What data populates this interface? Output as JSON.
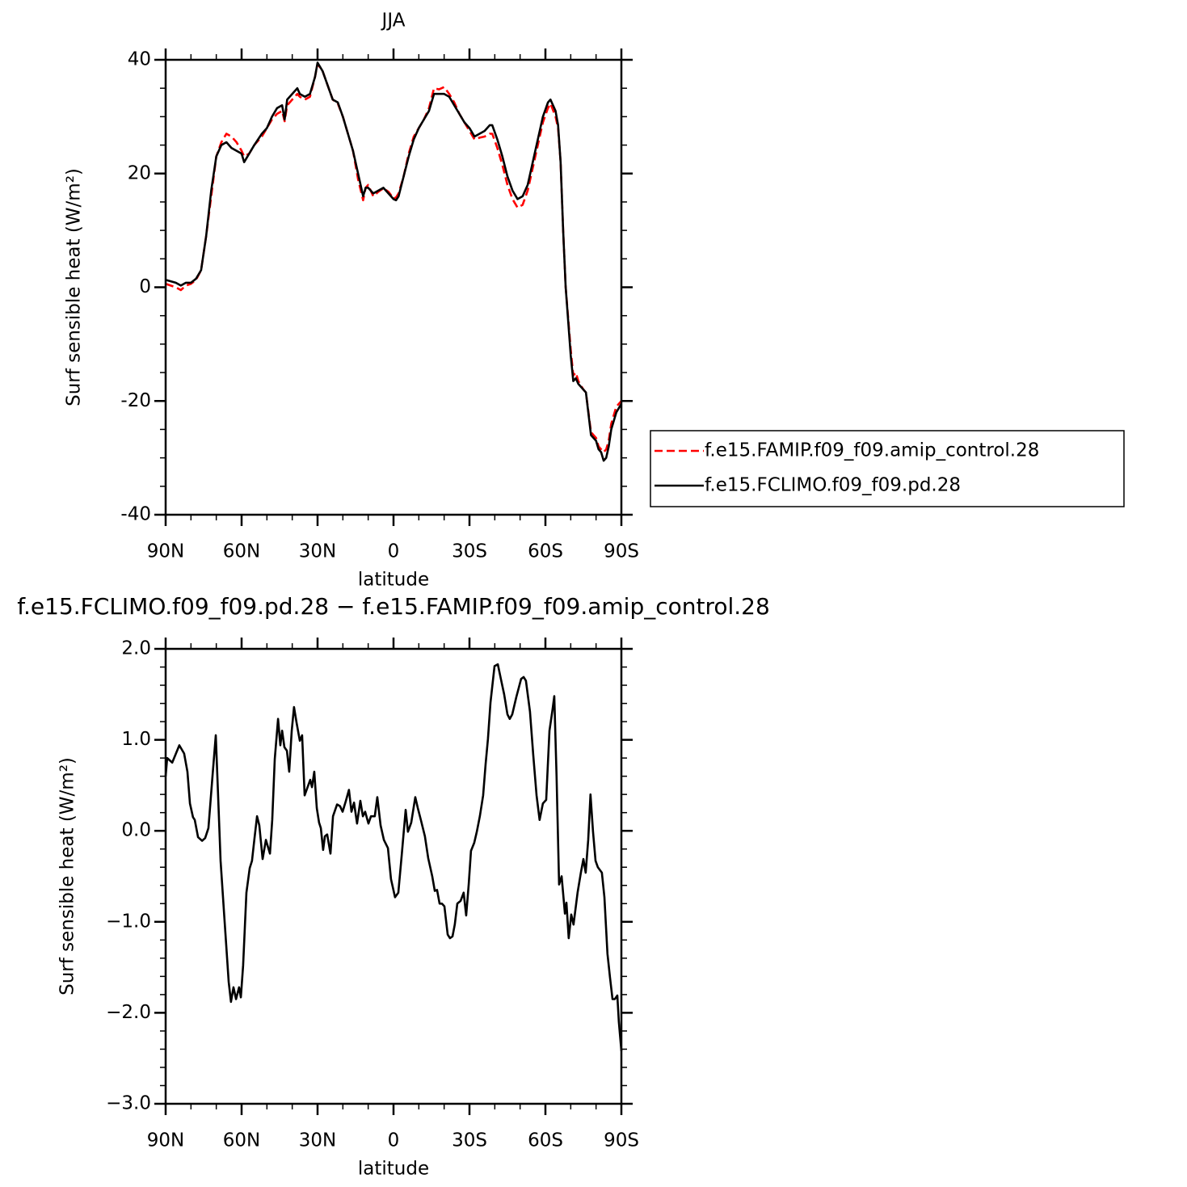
{
  "chart_data": [
    {
      "type": "line",
      "title": "JJA",
      "x_label": "latitude",
      "y_label": "Surf sensible heat (W/m²)",
      "xlim": [
        90,
        -90
      ],
      "xticks": [
        {
          "value": 90,
          "label": "90N"
        },
        {
          "value": 60,
          "label": "60N"
        },
        {
          "value": 30,
          "label": "30N"
        },
        0,
        {
          "value": -30,
          "label": "30S"
        },
        {
          "value": -60,
          "label": "60S"
        },
        {
          "value": -90,
          "label": "90S"
        }
      ],
      "ylim": [
        -40,
        40
      ],
      "yticks": [
        40,
        20,
        0,
        -20,
        -40
      ],
      "legend": "outside right",
      "x": [
        90,
        86,
        84,
        82,
        80,
        78,
        76,
        74,
        72,
        70,
        68,
        66,
        64,
        62,
        60,
        59,
        57,
        55,
        52,
        50,
        48,
        46,
        44,
        43,
        42,
        40,
        38,
        37,
        35,
        33,
        31,
        30,
        28,
        26,
        24,
        22,
        20,
        18,
        16,
        14,
        12,
        11,
        10,
        8,
        6,
        4,
        2,
        0,
        -1,
        -2,
        -4,
        -6,
        -8,
        -10,
        -12,
        -14,
        -16,
        -18,
        -20,
        -22,
        -24,
        -26,
        -28,
        -30,
        -32,
        -34,
        -36,
        -38,
        -39,
        -41,
        -43,
        -45,
        -47,
        -49,
        -51,
        -53,
        -55,
        -57,
        -59,
        -61,
        -62,
        -64,
        -65,
        -66,
        -67,
        -68,
        -69,
        -70,
        -71,
        -72,
        -73,
        -75,
        -76,
        -78,
        -80,
        -81,
        -82,
        -83,
        -84,
        -85,
        -86,
        -88,
        -90
      ],
      "series": [
        {
          "name": "f.e15.FAMIP.f09_f09.amip_control.28",
          "color": "#ff0000",
          "line_style": "dashed",
          "values": [
            0.6,
            0,
            -0.5,
            0.3,
            0.6,
            1.3,
            3,
            9,
            16,
            23,
            25.5,
            27,
            26.5,
            25.5,
            24,
            23,
            23.5,
            25,
            26.5,
            28,
            29.5,
            30.5,
            31,
            29.2,
            32,
            33,
            34,
            33.5,
            33,
            33.5,
            37,
            39.3,
            38,
            35.5,
            33,
            32.3,
            30,
            27,
            24,
            19,
            15.3,
            17.5,
            18,
            16,
            16.8,
            17.4,
            16.8,
            15.6,
            15.8,
            16.5,
            19.5,
            23.5,
            26.5,
            28,
            29.5,
            31.5,
            35,
            34.8,
            35.2,
            34,
            32.5,
            30.5,
            29,
            27.5,
            26,
            26.3,
            26.5,
            27,
            27,
            24.5,
            21.5,
            18,
            15.5,
            14,
            14.5,
            17,
            21,
            25,
            29,
            31.5,
            32.3,
            30,
            28,
            22,
            10,
            0,
            -5.5,
            -11,
            -15.5,
            -15,
            -16.5,
            -18,
            -18.5,
            -25.5,
            -26.5,
            -28,
            -28.5,
            -29,
            -28.5,
            -27,
            -24,
            -21,
            -20
          ]
        },
        {
          "name": "f.e15.FCLIMO.f09_f09.pd.28",
          "color": "#000000",
          "line_style": "solid",
          "values": [
            1.3,
            0.8,
            0.3,
            0.8,
            0.8,
            1.5,
            3,
            9,
            17,
            23,
            25,
            25.5,
            24.5,
            24,
            23.5,
            22,
            23.5,
            25,
            27,
            28,
            30,
            31.5,
            32,
            29.5,
            33,
            34,
            35,
            34,
            33.5,
            34,
            37,
            39.5,
            38,
            35.5,
            33,
            32.5,
            30,
            27,
            24,
            20,
            16,
            17.5,
            17.5,
            16.5,
            17,
            17.5,
            16.5,
            15.5,
            15.3,
            16,
            19.5,
            23,
            26,
            28,
            29.5,
            31,
            34,
            34,
            34,
            33.5,
            32,
            30.5,
            29,
            28,
            26.5,
            27,
            27.5,
            28.5,
            28.5,
            26,
            23,
            19.5,
            17,
            15.5,
            16,
            18,
            22,
            26,
            30,
            32.5,
            33,
            31,
            28.5,
            22,
            10,
            0,
            -6,
            -12,
            -16.5,
            -16,
            -17,
            -18,
            -18.5,
            -26,
            -27,
            -28.5,
            -29,
            -30.5,
            -30,
            -28,
            -25,
            -22,
            -20.5
          ]
        }
      ]
    },
    {
      "type": "line",
      "title": "f.e15.FCLIMO.f09_f09.pd.28 − f.e15.FAMIP.f09_f09.amip_control.28",
      "x_label": "latitude",
      "y_label": "Surf sensible heat (W/m²)",
      "xlim": [
        90,
        -90
      ],
      "xticks": [
        {
          "value": 90,
          "label": "90N"
        },
        {
          "value": 60,
          "label": "60N"
        },
        {
          "value": 30,
          "label": "30N"
        },
        0,
        {
          "value": -30,
          "label": "30S"
        },
        {
          "value": -60,
          "label": "60S"
        },
        {
          "value": -90,
          "label": "90S"
        }
      ],
      "ylim": [
        -3,
        2
      ],
      "yticks": [
        {
          "value": 2,
          "label": "2.0"
        },
        {
          "value": 1,
          "label": "1.0"
        },
        {
          "value": 0,
          "label": "0.0"
        },
        {
          "value": -1,
          "label": "−1.0"
        },
        {
          "value": -2,
          "label": "−2.0"
        },
        {
          "value": -3,
          "label": "−3.0"
        }
      ],
      "color": "#000000",
      "x": [
        90,
        89.4,
        87.4,
        84.6,
        82.7,
        81.4,
        80.4,
        79.2,
        78.5,
        77.2,
        75.6,
        74.4,
        73.1,
        71.5,
        70.2,
        69.3,
        68.3,
        66.7,
        65.1,
        64.2,
        63.2,
        62.2,
        61.0,
        60.3,
        59.4,
        58.1,
        56.8,
        55.9,
        54.9,
        53.9,
        53.0,
        51.7,
        50.4,
        48.8,
        47.9,
        46.9,
        45.6,
        44.7,
        44.0,
        43.1,
        42.1,
        41.2,
        40.2,
        39.3,
        38.3,
        37.0,
        36.1,
        35.1,
        34.2,
        32.9,
        32.2,
        31.3,
        30.3,
        29.4,
        28.7,
        27.8,
        27.1,
        26.2,
        24.9,
        23.9,
        22.3,
        21.1,
        20.1,
        18.8,
        17.6,
        16.6,
        15.6,
        14.4,
        13.1,
        12.1,
        11.2,
        9.9,
        8.9,
        7.4,
        6.4,
        5.1,
        3.8,
        2.2,
        1.0,
        -0.6,
        -1.9,
        -3.2,
        -4.8,
        -5.7,
        -7.0,
        -8.6,
        -9.6,
        -10.8,
        -12.4,
        -13.7,
        -15.3,
        -16.3,
        -17.2,
        -18.2,
        -19.1,
        -20.1,
        -21.4,
        -22.3,
        -23.3,
        -24.2,
        -25.2,
        -26.5,
        -27.7,
        -28.7,
        -29.7,
        -30.6,
        -31.9,
        -32.9,
        -34.1,
        -35.4,
        -36.4,
        -37.3,
        -38.3,
        -39.9,
        -41.2,
        -42.4,
        -43.7,
        -45.0,
        -45.9,
        -46.9,
        -48.5,
        -50.4,
        -51.4,
        -52.3,
        -53.9,
        -55.2,
        -56.5,
        -57.7,
        -59.0,
        -60.3,
        -61.6,
        -62.8,
        -63.5,
        -64.4,
        -65.4,
        -66.4,
        -67.7,
        -68.3,
        -69.2,
        -70.2,
        -71.1,
        -72.7,
        -74.0,
        -75.0,
        -75.9,
        -76.9,
        -77.8,
        -78.8,
        -79.8,
        -80.7,
        -82.3,
        -83.3,
        -84.5,
        -85.5,
        -86.5,
        -87.4,
        -88.4,
        -89.0,
        -90
      ],
      "values": [
        0.6,
        0.8,
        0.75,
        0.94,
        0.85,
        0.65,
        0.3,
        0.15,
        0.12,
        -0.07,
        -0.11,
        -0.08,
        0.03,
        0.6,
        1.05,
        0.4,
        -0.33,
        -1.0,
        -1.66,
        -1.88,
        -1.72,
        -1.85,
        -1.72,
        -1.83,
        -1.48,
        -0.68,
        -0.41,
        -0.33,
        -0.08,
        0.16,
        0.06,
        -0.31,
        -0.1,
        -0.25,
        0.12,
        0.79,
        1.23,
        0.94,
        1.1,
        0.92,
        0.88,
        0.65,
        1.1,
        1.36,
        1.19,
        0.99,
        1.05,
        0.39,
        0.46,
        0.56,
        0.48,
        0.65,
        0.25,
        0.09,
        0.03,
        -0.21,
        -0.06,
        -0.04,
        -0.25,
        0.16,
        0.29,
        0.27,
        0.21,
        0.33,
        0.45,
        0.21,
        0.31,
        0.08,
        0.33,
        0.16,
        0.21,
        0.08,
        0.16,
        0.16,
        0.37,
        0.06,
        -0.1,
        -0.19,
        -0.53,
        -0.73,
        -0.68,
        -0.28,
        0.23,
        -0.01,
        0.09,
        0.37,
        0.25,
        0.12,
        -0.06,
        -0.3,
        -0.5,
        -0.66,
        -0.65,
        -0.8,
        -0.8,
        -0.83,
        -1.14,
        -1.18,
        -1.16,
        -1.03,
        -0.8,
        -0.77,
        -0.68,
        -0.93,
        -0.59,
        -0.22,
        -0.13,
        -0.01,
        0.16,
        0.39,
        0.74,
        1.01,
        1.41,
        1.81,
        1.83,
        1.67,
        1.5,
        1.28,
        1.23,
        1.28,
        1.47,
        1.67,
        1.69,
        1.65,
        1.31,
        0.83,
        0.39,
        0.12,
        0.3,
        0.34,
        1.1,
        1.33,
        1.48,
        0.6,
        -0.59,
        -0.5,
        -0.91,
        -0.79,
        -1.18,
        -0.92,
        -1.03,
        -0.68,
        -0.46,
        -0.31,
        -0.46,
        -0.1,
        0.4,
        -0.01,
        -0.33,
        -0.4,
        -0.46,
        -0.73,
        -1.35,
        -1.61,
        -1.85,
        -1.85,
        -1.81,
        -2.1,
        -2.42
      ]
    }
  ]
}
